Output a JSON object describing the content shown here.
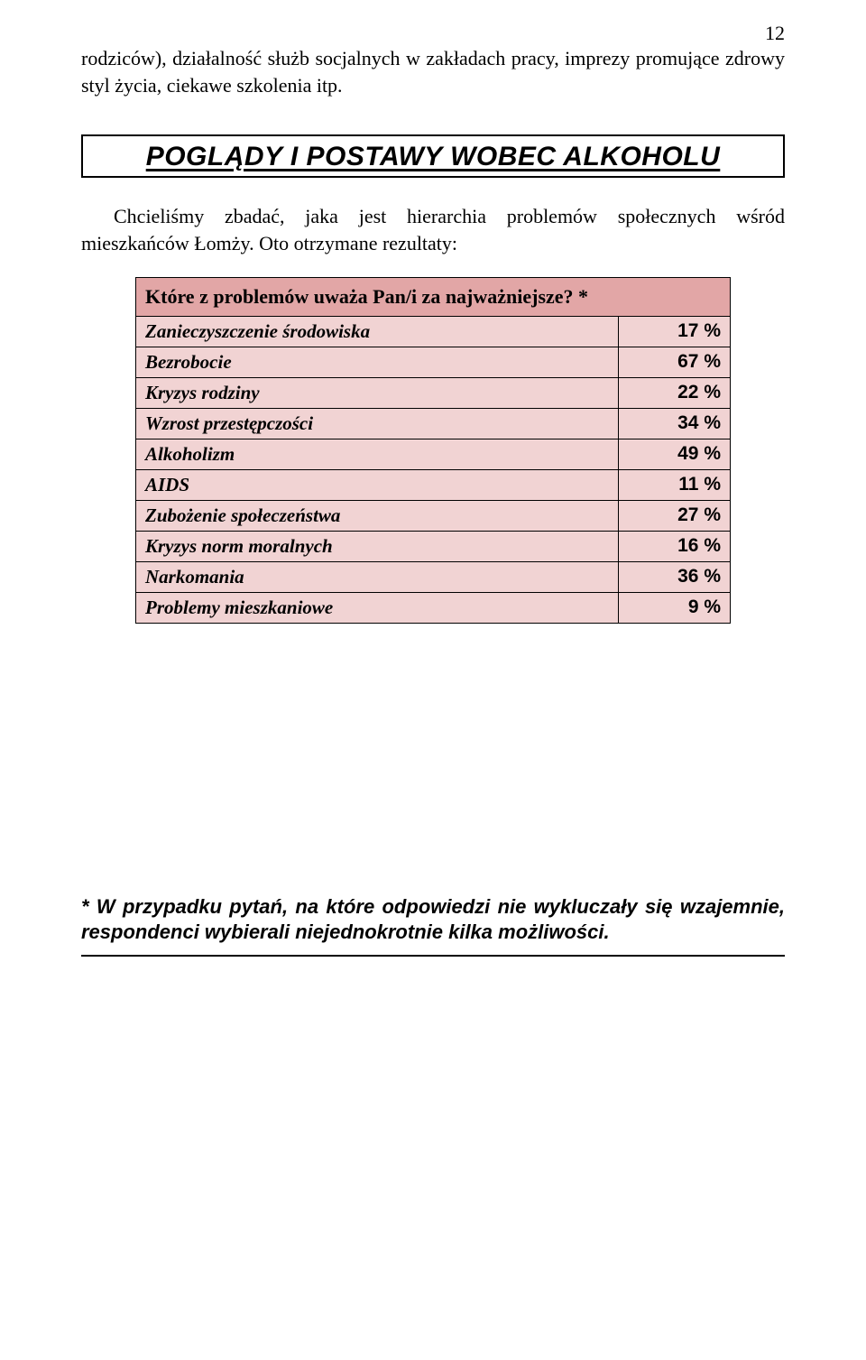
{
  "pageNumber": "12",
  "introParagraph": "rodziców), działalność służb socjalnych w zakładach pracy, imprezy promujące zdrowy styl życia, ciekawe szkolenia itp.",
  "heading": "POGLĄDY I POSTAWY WOBEC ALKOHOLU",
  "leadParagraph": "Chcieliśmy zbadać, jaka jest hierarchia problemów społecznych wśród mieszkańców Łomży. Oto otrzymane rezultaty:",
  "table": {
    "header": "Które z problemów uważa Pan/i za najważniejsze? *",
    "header_bg": "#e2a6a6",
    "cell_bg": "#f1d3d3",
    "border_color": "#000000",
    "label_font": "Comic Sans MS",
    "value_font": "Arial",
    "rows": [
      {
        "label": "Zanieczyszczenie środowiska",
        "value": "17 %"
      },
      {
        "label": "Bezrobocie",
        "value": "67 %"
      },
      {
        "label": "Kryzys rodziny",
        "value": "22 %"
      },
      {
        "label": "Wzrost przestępczości",
        "value": "34 %"
      },
      {
        "label": "Alkoholizm",
        "value": "49 %"
      },
      {
        "label": "AIDS",
        "value": "11 %"
      },
      {
        "label": "Zubożenie społeczeństwa",
        "value": "27 %"
      },
      {
        "label": "Kryzys norm moralnych",
        "value": "16 %"
      },
      {
        "label": "Narkomania",
        "value": "36 %"
      },
      {
        "label": "Problemy mieszkaniowe",
        "value": "9 %"
      }
    ]
  },
  "footnote": "* W przypadku pytań, na które odpowiedzi nie wykluczały się wzajemnie, respondenci wybierali niejednokrotnie kilka możliwości."
}
